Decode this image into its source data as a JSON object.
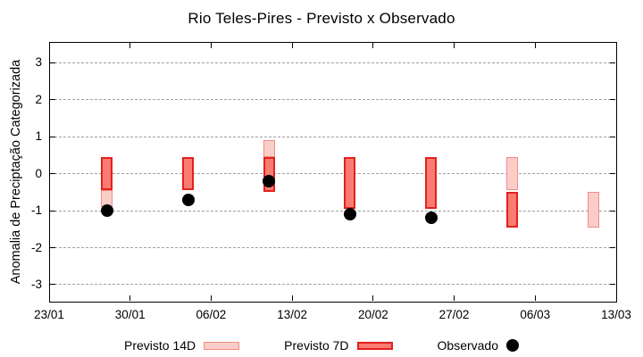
{
  "page": {
    "background": "#ffffff"
  },
  "chart_data": {
    "type": "range-bar+scatter",
    "title": "Rio Teles-Pires - Previsto x Observado",
    "xlabel": "",
    "ylabel": "Anomalia de Preciptação Categorizada",
    "grid": "horizontal-dashed",
    "grid_color": "#a0a0a0",
    "axis_color": "#000000",
    "legend_position": "bottom-center",
    "x_axis": {
      "tick_labels": [
        "23/01",
        "30/01",
        "06/02",
        "13/02",
        "20/02",
        "27/02",
        "06/03",
        "13/03"
      ],
      "tick_days": [
        0,
        7,
        14,
        21,
        28,
        35,
        42,
        49
      ],
      "span_days": 49
    },
    "y_axis": {
      "tick_labels": [
        "3",
        "2",
        "1",
        "0",
        "-1",
        "-2",
        "-3"
      ],
      "range_approx": [
        -3.5,
        3.5
      ]
    },
    "series": [
      {
        "name": "Previsto 14D",
        "type": "range-bar",
        "fill": "#fbcdc8",
        "border": "#ee8c82",
        "points": [
          {
            "date": "28/01",
            "day": 5,
            "high": -0.45,
            "low": -0.9
          },
          {
            "date": "11/02",
            "day": 19,
            "high": 0.9,
            "low": 0.45
          },
          {
            "date": "04/03",
            "day": 40,
            "high": 0.45,
            "low": -0.45
          },
          {
            "date": "11/03",
            "day": 47,
            "high": -0.5,
            "low": -1.45
          }
        ]
      },
      {
        "name": "Previsto 7D",
        "type": "range-bar",
        "fill": "#f97b72",
        "border": "#e3211c",
        "points": [
          {
            "date": "28/01",
            "day": 5,
            "high": 0.45,
            "low": -0.45
          },
          {
            "date": "04/02",
            "day": 12,
            "high": 0.45,
            "low": -0.45
          },
          {
            "date": "11/02",
            "day": 19,
            "high": 0.45,
            "low": -0.5
          },
          {
            "date": "18/02",
            "day": 26,
            "high": 0.45,
            "low": -0.95
          },
          {
            "date": "25/02",
            "day": 33,
            "high": 0.45,
            "low": -0.95
          },
          {
            "date": "04/03",
            "day": 40,
            "high": -0.5,
            "low": -1.45
          }
        ]
      },
      {
        "name": "Observado",
        "type": "scatter",
        "color": "#000000",
        "points": [
          {
            "date": "28/01",
            "day": 5,
            "value": -1.0
          },
          {
            "date": "04/02",
            "day": 12,
            "value": -0.7
          },
          {
            "date": "11/02",
            "day": 19,
            "value": -0.2
          },
          {
            "date": "18/02",
            "day": 26,
            "value": -1.1
          },
          {
            "date": "25/02",
            "day": 33,
            "value": -1.2
          }
        ]
      }
    ]
  }
}
